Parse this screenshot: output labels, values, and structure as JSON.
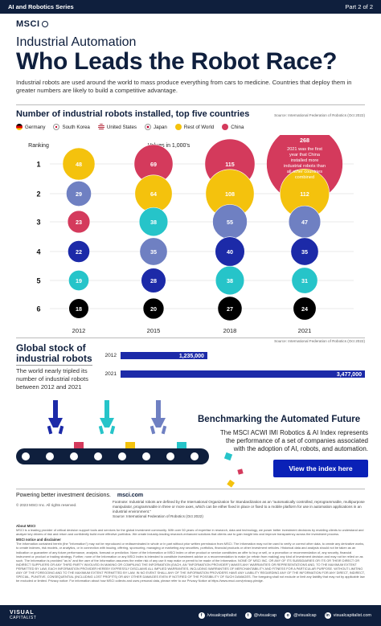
{
  "topbar": {
    "series": "AI and Robotics Series",
    "part": "Part 2 of 2"
  },
  "brand": "MSCI",
  "header": {
    "subtitle": "Industrial Automation",
    "title": "Who Leads the Robot Race?",
    "intro": "Industrial robots are used around the world to mass produce everything from cars to medicine. Countries that deploy them in greater numbers are likely to build a competitive advantage."
  },
  "colors": {
    "germany": "#f4c20d",
    "south_korea": "#6f80c2",
    "united_states": "#1c2aa8",
    "japan": "#26c4c9",
    "rest_of_world": "#f4c20d",
    "china": "#d43a5c",
    "navy": "#0f1f3d",
    "bar": "#1c2aa8"
  },
  "chart_data": [
    {
      "type": "bubble",
      "title": "Number of industrial robots installed, top five countries",
      "source": "Source: International Federation of Robotics (Oct 2022)",
      "value_label": "Values in 1,000's",
      "row_label": "Ranking",
      "ranks": [
        "1",
        "2",
        "3",
        "4",
        "5",
        "6"
      ],
      "years": [
        "2012",
        "2015",
        "2018",
        "2021"
      ],
      "legend": [
        "Germany",
        "South Korea",
        "United States",
        "Japan",
        "Rest of World",
        "China"
      ],
      "columns": [
        {
          "year": "2012",
          "points": [
            {
              "rank": 1,
              "series": "Rest of World",
              "value": 48
            },
            {
              "rank": 2,
              "series": "South Korea",
              "value": 29
            },
            {
              "rank": 3,
              "series": "China",
              "value": 23
            },
            {
              "rank": 4,
              "series": "United States",
              "value": 22
            },
            {
              "rank": 5,
              "series": "Japan",
              "value": 19
            },
            {
              "rank": 6,
              "series": "Germany",
              "value": 18
            }
          ]
        },
        {
          "year": "2015",
          "points": [
            {
              "rank": 1,
              "series": "China",
              "value": 69
            },
            {
              "rank": 2,
              "series": "Rest of World",
              "value": 64
            },
            {
              "rank": 3,
              "series": "Japan",
              "value": 38
            },
            {
              "rank": 4,
              "series": "South Korea",
              "value": 35
            },
            {
              "rank": 5,
              "series": "United States",
              "value": 28
            },
            {
              "rank": 6,
              "series": "Germany",
              "value": 20
            }
          ]
        },
        {
          "year": "2018",
          "points": [
            {
              "rank": 1,
              "series": "China",
              "value": 115
            },
            {
              "rank": 2,
              "series": "Rest of World",
              "value": 108
            },
            {
              "rank": 3,
              "series": "South Korea",
              "value": 55
            },
            {
              "rank": 4,
              "series": "United States",
              "value": 40
            },
            {
              "rank": 5,
              "series": "Japan",
              "value": 38
            },
            {
              "rank": 6,
              "series": "Germany",
              "value": 27
            }
          ]
        },
        {
          "year": "2021",
          "points": [
            {
              "rank": 1,
              "series": "China",
              "value": 268
            },
            {
              "rank": 2,
              "series": "Rest of World",
              "value": 112
            },
            {
              "rank": 3,
              "series": "South Korea",
              "value": 47
            },
            {
              "rank": 4,
              "series": "United States",
              "value": 35
            },
            {
              "rank": 5,
              "series": "Japan",
              "value": 31
            },
            {
              "rank": 6,
              "series": "Germany",
              "value": 24
            }
          ]
        }
      ],
      "annotation": "2021 was the first year that China installed more industrial robots than all other countries combined"
    },
    {
      "type": "bar",
      "title": "Global stock of industrial robots",
      "source": "Source: International Federation of Robotics (Oct 2022)",
      "categories": [
        "2012",
        "2021"
      ],
      "values": [
        1235000,
        3477000
      ],
      "value_labels": [
        "1,235,000",
        "3,477,000"
      ],
      "description": "The world nearly tripled its number of industrial robots between 2012 and 2021"
    }
  ],
  "benchmark": {
    "title": "Benchmarking the Automated Future",
    "text": "The MSCI ACWI IMI Robotics & AI Index represents the performance of a set of companies associated with the adoption of AI, robots, and automation.",
    "button": "View the index here"
  },
  "footer_notes": {
    "invest": "Powering better investment decisions.",
    "url": "msci.com",
    "copyright": "© 2023 MSCI Inc. All rights reserved.",
    "footnote": "Footnote: Industrial robots are defined by the International Organization for Standardization as an \"automatically controlled, reprogrammable, multipurpose manipulator, programmable in three or more axes, which can be either fixed in place or fixed to a mobile platform for use in automation applications in an industrial environment.\"",
    "footnote_source": "Source: International Federation of Robotics (Oct 2022)",
    "about_title": "About MSCI",
    "about_text": "MSCI is a leading provider of critical decision support tools and services for the global investment community. With over 50 years of expertise in research, data and technology, we power better investment decisions by enabling clients to understand and analyze key drivers of risk and return and confidently build more effective portfolios. We create industry-leading research-enhanced solutions that clients use to gain insight into and improve transparency across the investment process.",
    "notice_title": "MSCI notice and disclaimer",
    "notice_text": "The information contained herein (the \"Information\") may not be reproduced or redisseminated in whole or in part without prior written permission from MSCI. The Information may not be used to verify or correct other data, to create any derivative works, to create indexes, risk models, or analytics, or in connection with issuing, offering, sponsoring, managing or marketing any securities, portfolios, financial products or other investment vehicles. Historical data and analysis should not be taken as an indication or guarantee of any future performance, analysis, forecast or prediction. None of the Information or MSCI index or other product or service constitutes an offer to buy or sell, or a promotion or recommendation of, any security, financial instrument or product or trading strategy. Further, none of the Information or any MSCI index is intended to constitute investment advice or a recommendation to make (or refrain from making) any kind of investment decision and may not be relied on as such. The Information is provided \"as is\" and the user of the Information assumes the entire risk of any use it may make or permit to be made of the Information. NONE OF MSCI INC. OR ANY OF ITS SUBSIDIARIES OR ITS OR THEIR DIRECT OR INDIRECT SUPPLIERS OR ANY THIRD PARTY INVOLVED IN MAKING OR COMPILING THE INFORMATION (EACH, AN \"INFORMATION PROVIDER\") MAKES ANY WARRANTIES OR REPRESENTATIONS AND, TO THE MAXIMUM EXTENT PERMITTED BY LAW, EACH INFORMATION PROVIDER HEREBY EXPRESSLY DISCLAIMS ALL IMPLIED WARRANTIES, INCLUDING WARRANTIES OF MERCHANTABILITY AND FITNESS FOR A PARTICULAR PURPOSE. WITHOUT LIMITING ANY OF THE FOREGOING AND TO THE MAXIMUM EXTENT PERMITTED BY LAW, IN NO EVENT SHALL ANY OF THE INFORMATION PROVIDERS HAVE ANY LIABILITY REGARDING ANY OF THE INFORMATION FOR ANY DIRECT, INDIRECT, SPECIAL, PUNITIVE, CONSEQUENTIAL (INCLUDING LOST PROFITS) OR ANY OTHER DAMAGES EVEN IF NOTIFIED OF THE POSSIBILITY OF SUCH DAMAGES. The foregoing shall not exclude or limit any liability that may not by applicable law be excluded or limited. Privacy notice: For information about how MSCI collects and uses personal data, please refer to our Privacy Notice at https://www.msci.com/privacy-pledge."
  },
  "footer": {
    "brand_top": "VISUAL",
    "brand_bottom": "CAPITALIST",
    "socials": [
      {
        "icon": "f",
        "label": "/visualcapitalist"
      },
      {
        "icon": "t",
        "label": "@visualcap"
      },
      {
        "icon": "o",
        "label": "@visualcap"
      },
      {
        "icon": "in",
        "label": "visualcapitalist.com"
      }
    ]
  }
}
